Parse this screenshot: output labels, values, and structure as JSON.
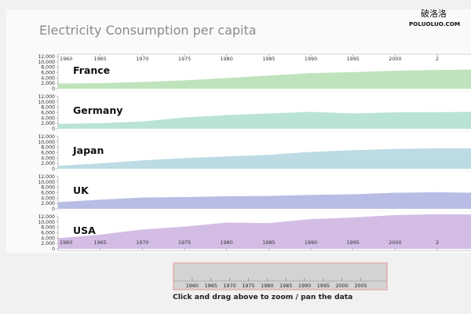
{
  "title": "Electricity Consumption per capita",
  "watermark": {
    "text": "破洛洛",
    "url": "POLUOLUO.COM"
  },
  "instruction": "Click and drag above to zoom / pan the data",
  "colors": {
    "France": "#bfe3bd",
    "Germany": "#b9e3d5",
    "Japan": "#bcdbe3",
    "UK": "#b8bde5",
    "USA": "#d3bde5",
    "grid": "#e6e6e6"
  },
  "chart_data": {
    "type": "area",
    "title": "Electricity Consumption per capita",
    "xlabel": "",
    "ylabel": "",
    "xlim": [
      1960,
      2009
    ],
    "ylim": [
      0,
      12000
    ],
    "x_ticks": [
      1960,
      1965,
      1970,
      1975,
      1980,
      1985,
      1990,
      1995,
      2000,
      "2"
    ],
    "y_ticks": [
      "0",
      "2,000",
      "4,000",
      "6,000",
      "8,000",
      "10,000",
      "12,000"
    ],
    "x": [
      1960,
      1965,
      1970,
      1975,
      1980,
      1985,
      1990,
      1995,
      2000,
      2005,
      2009
    ],
    "series": [
      {
        "name": "France",
        "values": [
          1900,
          2100,
          2500,
          3100,
          4000,
          4900,
          5800,
          6200,
          6700,
          7000,
          7100
        ]
      },
      {
        "name": "Germany",
        "values": [
          1800,
          2100,
          2700,
          4200,
          5100,
          5700,
          6300,
          5700,
          6100,
          6200,
          6300
        ]
      },
      {
        "name": "Japan",
        "values": [
          1100,
          2000,
          3100,
          4000,
          4600,
          5200,
          6300,
          6900,
          7400,
          7600,
          7600
        ]
      },
      {
        "name": "UK",
        "values": [
          2500,
          3400,
          4200,
          4400,
          4700,
          4800,
          5200,
          5400,
          6000,
          6200,
          6000
        ]
      },
      {
        "name": "USA",
        "values": [
          4000,
          5300,
          7200,
          8300,
          9800,
          9600,
          11100,
          11700,
          12600,
          12900,
          12800
        ]
      }
    ]
  },
  "brush": {
    "ticks": [
      "1960",
      "1965",
      "1970",
      "1975",
      "1980",
      "1985",
      "1990",
      "1995",
      "2000",
      "2005"
    ]
  }
}
